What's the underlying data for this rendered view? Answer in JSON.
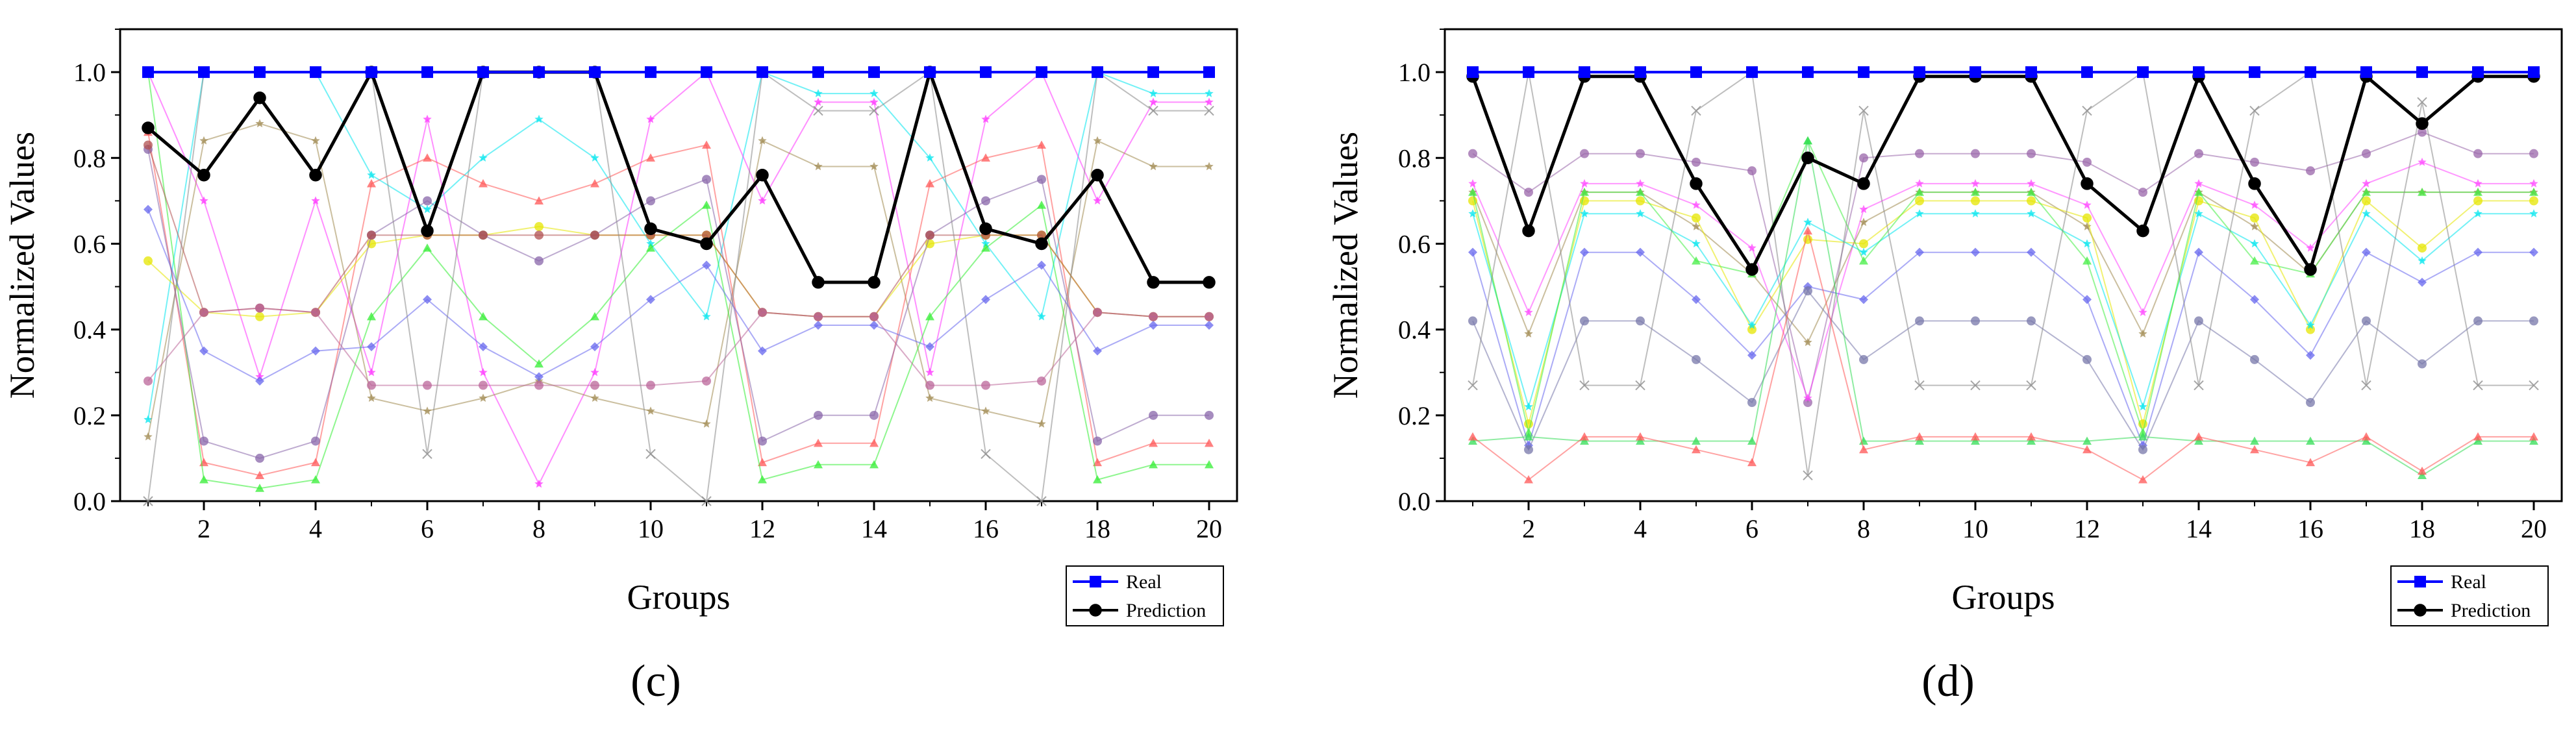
{
  "chart_data": [
    {
      "type": "line",
      "panel_label": "(c)",
      "xlabel": "Groups",
      "ylabel": "Normalized Values",
      "xlim": [
        0.5,
        20.5
      ],
      "ylim": [
        0,
        1.1
      ],
      "xticks": [
        2,
        4,
        6,
        8,
        10,
        12,
        14,
        16,
        18,
        20
      ],
      "yticks": [
        0.0,
        0.2,
        0.4,
        0.6,
        0.8,
        1.0
      ],
      "x": [
        1,
        2,
        3,
        4,
        5,
        6,
        7,
        8,
        9,
        10,
        11,
        12,
        13,
        14,
        15,
        16,
        17,
        18,
        19,
        20
      ],
      "legend": {
        "position": "bottom-right",
        "entries": [
          "Real",
          "Prediction"
        ]
      },
      "series": [
        {
          "name": "Real",
          "color": "#0000ff",
          "marker": "square",
          "values": [
            1,
            1,
            1,
            1,
            1,
            1,
            1,
            1,
            1,
            1,
            1,
            1,
            1,
            1,
            1,
            1,
            1,
            1,
            1,
            1
          ]
        },
        {
          "name": "Prediction",
          "color": "#000000",
          "marker": "circle",
          "values": [
            0.87,
            0.76,
            0.94,
            0.76,
            1.0,
            0.63,
            1.0,
            1.0,
            1.0,
            0.635,
            0.6,
            0.76,
            0.51,
            0.51,
            1.0,
            0.635,
            0.6,
            0.76,
            0.51,
            0.51
          ]
        },
        {
          "name": "cyan",
          "color": "#00e5ee",
          "marker": "star",
          "values": [
            0.19,
            1.0,
            1.0,
            1.0,
            0.76,
            0.68,
            0.8,
            0.89,
            0.8,
            0.6,
            0.43,
            1.0,
            0.95,
            0.95,
            0.8,
            0.6,
            0.43,
            1.0,
            0.95,
            0.95
          ]
        },
        {
          "name": "magenta",
          "color": "#ff33ff",
          "marker": "star",
          "values": [
            1.0,
            0.7,
            0.29,
            0.7,
            0.3,
            0.89,
            0.3,
            0.04,
            0.3,
            0.89,
            1.0,
            0.7,
            0.93,
            0.93,
            0.3,
            0.89,
            1.0,
            0.7,
            0.93,
            0.93
          ]
        },
        {
          "name": "olive",
          "color": "#a08a50",
          "marker": "star",
          "values": [
            0.15,
            0.84,
            0.88,
            0.84,
            0.24,
            0.21,
            0.24,
            0.28,
            0.24,
            0.21,
            0.18,
            0.84,
            0.78,
            0.78,
            0.24,
            0.21,
            0.18,
            0.84,
            0.78,
            0.78
          ]
        },
        {
          "name": "red",
          "color": "#ff5555",
          "marker": "triangle",
          "values": [
            0.86,
            0.09,
            0.06,
            0.09,
            0.74,
            0.8,
            0.74,
            0.7,
            0.74,
            0.8,
            0.83,
            0.09,
            0.135,
            0.135,
            0.74,
            0.8,
            0.83,
            0.09,
            0.135,
            0.135
          ]
        },
        {
          "name": "green",
          "color": "#33ee33",
          "marker": "triangle",
          "values": [
            1.0,
            0.05,
            0.03,
            0.05,
            0.43,
            0.59,
            0.43,
            0.32,
            0.43,
            0.59,
            0.69,
            0.05,
            0.085,
            0.085,
            0.43,
            0.59,
            0.69,
            0.05,
            0.085,
            0.085
          ]
        },
        {
          "name": "yellow",
          "color": "#e6e600",
          "marker": "circle",
          "values": [
            0.56,
            0.44,
            0.43,
            0.44,
            0.6,
            0.62,
            0.62,
            0.64,
            0.62,
            0.62,
            0.62,
            0.44,
            0.43,
            0.43,
            0.6,
            0.62,
            0.62,
            0.44,
            0.43,
            0.43
          ]
        },
        {
          "name": "blue",
          "color": "#6666ee",
          "marker": "diamond",
          "values": [
            0.68,
            0.35,
            0.28,
            0.35,
            0.36,
            0.47,
            0.36,
            0.29,
            0.36,
            0.47,
            0.55,
            0.35,
            0.41,
            0.41,
            0.36,
            0.47,
            0.55,
            0.35,
            0.41,
            0.41
          ]
        },
        {
          "name": "purple",
          "color": "#8866aa",
          "marker": "circle",
          "values": [
            0.82,
            0.14,
            0.1,
            0.14,
            0.62,
            0.7,
            0.62,
            0.56,
            0.62,
            0.7,
            0.75,
            0.14,
            0.2,
            0.2,
            0.62,
            0.7,
            0.75,
            0.14,
            0.2,
            0.2
          ]
        },
        {
          "name": "brown",
          "color": "#b05050",
          "marker": "circle",
          "values": [
            0.83,
            0.44,
            0.45,
            0.44,
            0.62,
            0.62,
            0.62,
            0.62,
            0.62,
            0.62,
            0.62,
            0.44,
            0.43,
            0.43,
            0.62,
            0.62,
            0.62,
            0.44,
            0.43,
            0.43
          ]
        },
        {
          "name": "pink",
          "color": "#bb6699",
          "marker": "circle",
          "values": [
            0.28,
            0.44,
            0.45,
            0.44,
            0.27,
            0.27,
            0.27,
            0.27,
            0.27,
            0.27,
            0.28,
            0.44,
            0.43,
            0.43,
            0.27,
            0.27,
            0.28,
            0.44,
            0.43,
            0.43
          ]
        },
        {
          "name": "gray",
          "color": "#888888",
          "marker": "x",
          "values": [
            0.0,
            1.0,
            1.0,
            1.0,
            1.0,
            0.11,
            1.0,
            1.0,
            1.0,
            0.11,
            0.0,
            1.0,
            0.91,
            0.91,
            1.0,
            0.11,
            0.0,
            1.0,
            0.91,
            0.91
          ]
        }
      ]
    },
    {
      "type": "line",
      "panel_label": "(d)",
      "xlabel": "Groups",
      "ylabel": "Normalized Values",
      "xlim": [
        0.5,
        20.5
      ],
      "ylim": [
        0,
        1.1
      ],
      "xticks": [
        2,
        4,
        6,
        8,
        10,
        12,
        14,
        16,
        18,
        20
      ],
      "yticks": [
        0.0,
        0.2,
        0.4,
        0.6,
        0.8,
        1.0
      ],
      "x": [
        1,
        2,
        3,
        4,
        5,
        6,
        7,
        8,
        9,
        10,
        11,
        12,
        13,
        14,
        15,
        16,
        17,
        18,
        19,
        20
      ],
      "legend": {
        "position": "bottom-right",
        "entries": [
          "Real",
          "Prediction"
        ]
      },
      "series": [
        {
          "name": "Real",
          "color": "#0000ff",
          "marker": "square",
          "values": [
            1,
            1,
            1,
            1,
            1,
            1,
            1,
            1,
            1,
            1,
            1,
            1,
            1,
            1,
            1,
            1,
            1,
            1,
            1,
            1
          ]
        },
        {
          "name": "Prediction",
          "color": "#000000",
          "marker": "circle",
          "values": [
            0.99,
            0.63,
            0.99,
            0.99,
            0.74,
            0.54,
            0.8,
            0.74,
            0.99,
            0.99,
            0.99,
            0.74,
            0.63,
            0.99,
            0.74,
            0.54,
            0.99,
            0.88,
            0.99,
            0.99
          ]
        },
        {
          "name": "purple",
          "color": "#9966aa",
          "marker": "circle",
          "values": [
            0.81,
            0.72,
            0.81,
            0.81,
            0.79,
            0.77,
            0.23,
            0.8,
            0.81,
            0.81,
            0.81,
            0.79,
            0.72,
            0.81,
            0.79,
            0.77,
            0.81,
            0.86,
            0.81,
            0.81
          ]
        },
        {
          "name": "magenta",
          "color": "#ff44ff",
          "marker": "star",
          "values": [
            0.74,
            0.44,
            0.74,
            0.74,
            0.69,
            0.59,
            0.24,
            0.68,
            0.74,
            0.74,
            0.74,
            0.69,
            0.44,
            0.74,
            0.69,
            0.59,
            0.74,
            0.79,
            0.74,
            0.74
          ]
        },
        {
          "name": "olive",
          "color": "#a08a50",
          "marker": "star",
          "values": [
            0.72,
            0.39,
            0.72,
            0.72,
            0.64,
            0.53,
            0.37,
            0.65,
            0.72,
            0.72,
            0.72,
            0.64,
            0.39,
            0.72,
            0.64,
            0.53,
            0.72,
            0.72,
            0.72,
            0.72
          ]
        },
        {
          "name": "yellow",
          "color": "#e6e600",
          "marker": "circle",
          "values": [
            0.7,
            0.18,
            0.7,
            0.7,
            0.66,
            0.4,
            0.61,
            0.6,
            0.7,
            0.7,
            0.7,
            0.66,
            0.18,
            0.7,
            0.66,
            0.4,
            0.7,
            0.59,
            0.7,
            0.7
          ]
        },
        {
          "name": "cyan",
          "color": "#00e5ee",
          "marker": "star",
          "values": [
            0.67,
            0.22,
            0.67,
            0.67,
            0.6,
            0.41,
            0.65,
            0.58,
            0.67,
            0.67,
            0.67,
            0.6,
            0.22,
            0.67,
            0.6,
            0.41,
            0.67,
            0.56,
            0.67,
            0.67
          ]
        },
        {
          "name": "green",
          "color": "#44ee44",
          "marker": "triangle",
          "values": [
            0.72,
            0.16,
            0.72,
            0.72,
            0.56,
            0.53,
            0.84,
            0.56,
            0.72,
            0.72,
            0.72,
            0.56,
            0.16,
            0.72,
            0.56,
            0.53,
            0.72,
            0.72,
            0.72,
            0.72
          ]
        },
        {
          "name": "blue",
          "color": "#6666ee",
          "marker": "diamond",
          "values": [
            0.58,
            0.13,
            0.58,
            0.58,
            0.47,
            0.34,
            0.5,
            0.47,
            0.58,
            0.58,
            0.58,
            0.47,
            0.13,
            0.58,
            0.47,
            0.34,
            0.58,
            0.51,
            0.58,
            0.58
          ]
        },
        {
          "name": "slate",
          "color": "#7777aa",
          "marker": "circle",
          "values": [
            0.42,
            0.12,
            0.42,
            0.42,
            0.33,
            0.23,
            0.49,
            0.33,
            0.42,
            0.42,
            0.42,
            0.33,
            0.12,
            0.42,
            0.33,
            0.23,
            0.42,
            0.32,
            0.42,
            0.42
          ]
        },
        {
          "name": "gray",
          "color": "#888888",
          "marker": "x",
          "values": [
            0.27,
            1.0,
            0.27,
            0.27,
            0.91,
            1.0,
            0.06,
            0.91,
            0.27,
            0.27,
            0.27,
            0.91,
            1.0,
            0.27,
            0.91,
            1.0,
            0.27,
            0.93,
            0.27,
            0.27
          ]
        },
        {
          "name": "lightgreen",
          "color": "#33dd55",
          "marker": "triangle",
          "values": [
            0.14,
            0.15,
            0.14,
            0.14,
            0.14,
            0.14,
            0.84,
            0.14,
            0.14,
            0.14,
            0.14,
            0.14,
            0.15,
            0.14,
            0.14,
            0.14,
            0.14,
            0.06,
            0.14,
            0.14
          ]
        },
        {
          "name": "red",
          "color": "#ff5555",
          "marker": "triangle",
          "values": [
            0.15,
            0.05,
            0.15,
            0.15,
            0.12,
            0.09,
            0.63,
            0.12,
            0.15,
            0.15,
            0.15,
            0.12,
            0.05,
            0.15,
            0.12,
            0.09,
            0.15,
            0.07,
            0.15,
            0.15
          ]
        }
      ]
    }
  ]
}
